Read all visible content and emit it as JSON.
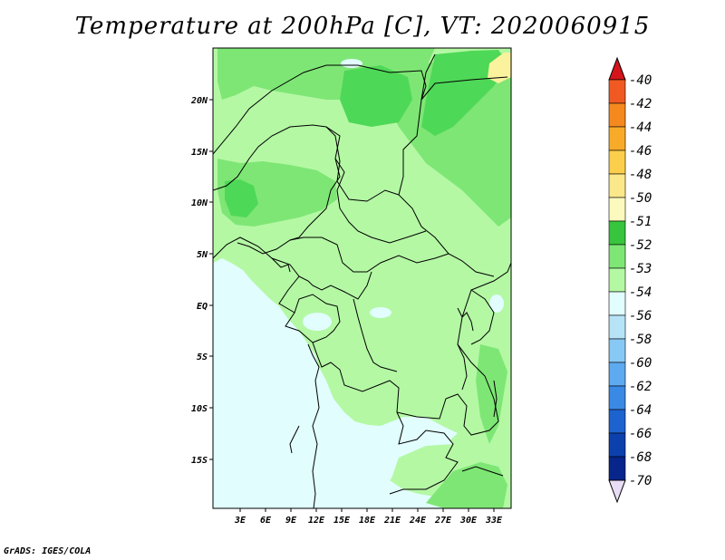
{
  "title": "Temperature at 200hPa [C], VT: 2020060915",
  "credit": "GrADS: IGES/COLA",
  "colors": {
    "ocean": "#e1fdfd",
    "light_green": "#b4f8a4",
    "mid_green": "#7ee675",
    "dark_green": "#4ed857",
    "yellow": "#fbf29e",
    "border": "#000000"
  },
  "y_axis": {
    "labels": [
      "20N",
      "15N",
      "10N",
      "5N",
      "EQ",
      "5S",
      "10S",
      "15S"
    ]
  },
  "x_axis": {
    "labels": [
      "3E",
      "6E",
      "9E",
      "12E",
      "15E",
      "18E",
      "21E",
      "24E",
      "27E",
      "30E",
      "33E"
    ]
  },
  "colorbar": {
    "levels": [
      "-40",
      "-42",
      "-44",
      "-46",
      "-48",
      "-50",
      "-51",
      "-52",
      "-53",
      "-54",
      "-56",
      "-58",
      "-60",
      "-62",
      "-64",
      "-66",
      "-68",
      "-70"
    ],
    "colors": [
      "#e5141e",
      "#f05a22",
      "#f5891e",
      "#f8ab29",
      "#fbcf4c",
      "#fbe88a",
      "#fbf9be",
      "#36c53c",
      "#7ee675",
      "#b4f8a4",
      "#e1fdfd",
      "#b7e3f7",
      "#88c8f4",
      "#5eaaf0",
      "#3a89e4",
      "#1d63cf",
      "#0c40ac",
      "#07258a",
      "#0c0e5e"
    ],
    "top_arrow_color": "#d4141a",
    "bottom_arrow_color": "#e8ddf5"
  }
}
